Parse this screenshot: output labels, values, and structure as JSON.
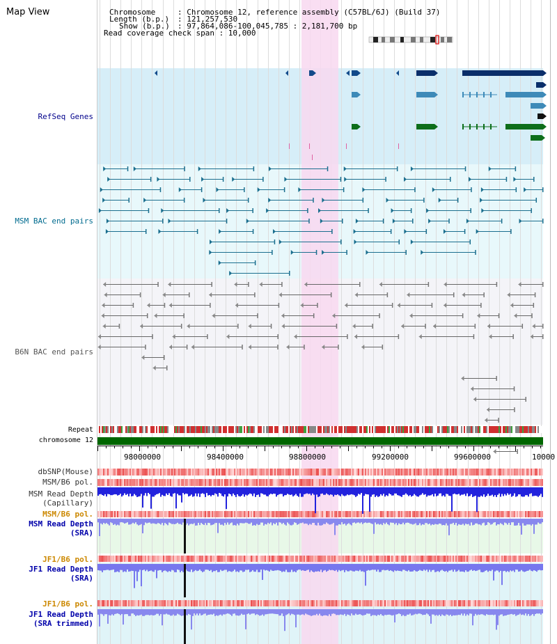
{
  "page": {
    "title": "Map View"
  },
  "header": {
    "chromosome_key": "Chromosome",
    "chromosome_val": ": Chromosome 12, reference assembly (C57BL/6J) (Build 37)",
    "length_key": "Length (b.p.)",
    "length_val": ": 121,257,530",
    "show_key": "Show (b.p.)",
    "show_val": ": 97,864,086-100,045,785 : 2,181,700 bp",
    "coverage": "Read coverage check span : 10,000"
  },
  "tracks": {
    "refseq": "RefSeq Genes",
    "msm_bac": "MSM BAC end pairs",
    "b6n_bac": "B6N BAC end pairs",
    "repeat": "Repeat",
    "chromosome": "chromosome 12",
    "dbsnp": "dbSNP(Mouse)",
    "msm_b6_pol": "MSM/B6 pol.",
    "msm_depth_cap_1": "MSM Read Depth",
    "msm_depth_cap_2": "(Capillary)",
    "msm_b6_pol_2": "MSM/B6 pol.",
    "msm_depth_sra_1": "MSM Read Depth",
    "msm_depth_sra_2": "(SRA)",
    "jf1_b6_pol": "JF1/B6 pol.",
    "jf1_depth_sra_1": "JF1 Read Depth",
    "jf1_depth_sra_2": "(SRA)",
    "jf1_b6_pol_2": "JF1/B6 pol.",
    "jf1_depth_trim_1": "JF1 Read Depth",
    "jf1_depth_trim_2": "(SRA trimmed)"
  },
  "axis": {
    "ticks": [
      "98000000",
      "98400000",
      "98800000",
      "99200000",
      "99600000",
      "10000"
    ]
  },
  "colors": {
    "refseq_label": "#00008b",
    "msm_label": "#006b8f",
    "b6n_label": "#555555",
    "pol_label": "#cc8800",
    "depth_label": "#0000aa",
    "highlight": "#f8d8f0",
    "refseq_bg": "#d6eef8",
    "msm_bg": "#e8f8fb",
    "b6n_bg": "#f4f4f8",
    "chromosome_bar": "#006600"
  }
}
